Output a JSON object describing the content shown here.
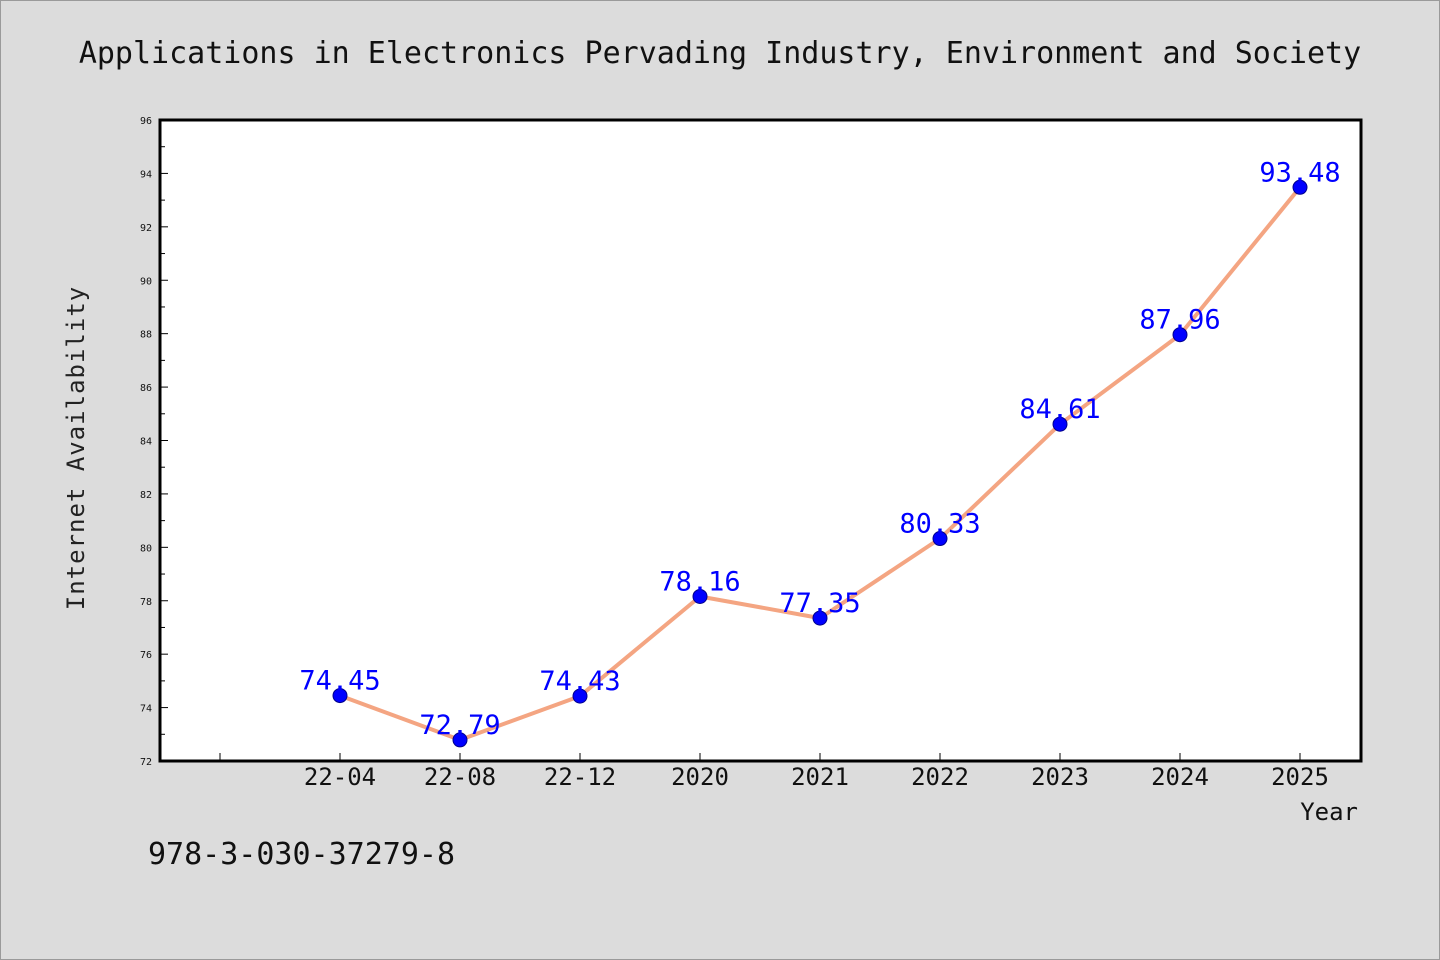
{
  "chart_data": {
    "type": "line",
    "title": "Applications in Electronics Pervading Industry, Environment and Society",
    "xlabel": "Year",
    "ylabel": "Internet Availability",
    "categories": [
      "22-04",
      "22-08",
      "22-12",
      "2020",
      "2021",
      "2022",
      "2023",
      "2024",
      "2025"
    ],
    "series": [
      {
        "values": [
          74.45,
          72.79,
          74.43,
          78.16,
          77.35,
          80.33,
          84.61,
          87.96,
          93.48
        ],
        "labels": [
          "74.45",
          "72.79",
          "74.43",
          "78.16",
          "77.35",
          "80.33",
          "84.61",
          "87.96",
          "93.48"
        ]
      }
    ],
    "ylim": [
      72,
      96
    ],
    "yticks": [
      72,
      74,
      76,
      78,
      80,
      82,
      84,
      86,
      88,
      90,
      92,
      94,
      96
    ],
    "grid": false,
    "colors": {
      "line": "#f4a582",
      "marker": "#0000ff",
      "data_label": "#0000ff",
      "axes": "#000000",
      "background": "#dcdcdc",
      "plot_background": "#ffffff"
    }
  },
  "footer": {
    "isbn": "978-3-030-37279-8"
  }
}
